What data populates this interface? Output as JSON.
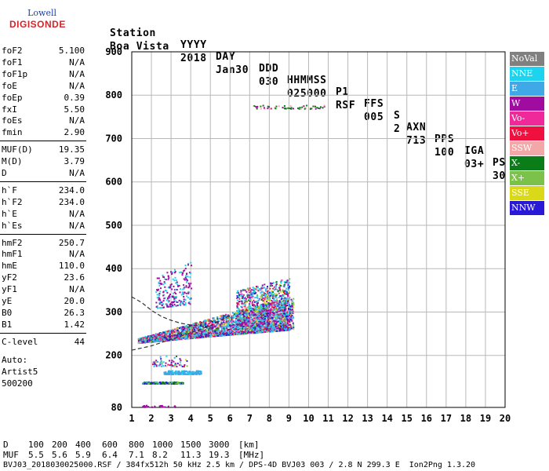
{
  "logo": {
    "line1": "Lowell",
    "line2": "DIGISONDE"
  },
  "header": {
    "labels": [
      "Station",
      "YYYY",
      "DAY",
      "DDD",
      "HHMMSS",
      "P1",
      "FFS",
      "S",
      "AXN",
      "PPS",
      "IGA",
      "PS"
    ],
    "values": [
      "Boa Vista",
      "2018",
      "Jan30",
      "030",
      "025000",
      "RSF",
      "005",
      "2",
      "713",
      "100",
      "03+",
      "30"
    ]
  },
  "parameters": {
    "group1": [
      {
        "name": "foF2",
        "value": "5.100"
      },
      {
        "name": "foF1",
        "value": "N/A"
      },
      {
        "name": "foF1p",
        "value": "N/A"
      },
      {
        "name": "foE",
        "value": "N/A"
      },
      {
        "name": "foEp",
        "value": "0.39"
      },
      {
        "name": "fxI",
        "value": "5.50"
      },
      {
        "name": "foEs",
        "value": "N/A"
      },
      {
        "name": "fmin",
        "value": "2.90"
      }
    ],
    "group2": [
      {
        "name": "MUF(D)",
        "value": "19.35"
      },
      {
        "name": "M(D)",
        "value": "3.79"
      },
      {
        "name": "D",
        "value": "N/A"
      }
    ],
    "group3": [
      {
        "name": "h`F",
        "value": "234.0"
      },
      {
        "name": "h`F2",
        "value": "234.0"
      },
      {
        "name": "h`E",
        "value": "N/A"
      },
      {
        "name": "h`Es",
        "value": "N/A"
      }
    ],
    "group4": [
      {
        "name": "hmF2",
        "value": "250.7"
      },
      {
        "name": "hmF1",
        "value": "N/A"
      },
      {
        "name": "hmE",
        "value": "110.0"
      },
      {
        "name": "yF2",
        "value": "23.6"
      },
      {
        "name": "yF1",
        "value": "N/A"
      },
      {
        "name": "yE",
        "value": "20.0"
      },
      {
        "name": "B0",
        "value": "26.3"
      },
      {
        "name": "B1",
        "value": "1.42"
      }
    ],
    "group5": [
      {
        "name": "C-level",
        "value": "44"
      }
    ],
    "auto": [
      "Auto:",
      "Artist5",
      "500200"
    ]
  },
  "legend": [
    {
      "label": "NoVal",
      "color": "#808080"
    },
    {
      "label": "NNE",
      "color": "#1ed3ee"
    },
    {
      "label": "E",
      "color": "#3fa8e6"
    },
    {
      "label": "W",
      "color": "#a00ca0"
    },
    {
      "label": "Vo-",
      "color": "#f0299b"
    },
    {
      "label": "Vo+",
      "color": "#ef1040"
    },
    {
      "label": "SSW",
      "color": "#f2a8a8"
    },
    {
      "label": "X-",
      "color": "#0a7c18"
    },
    {
      "label": "X+",
      "color": "#7cc24a"
    },
    {
      "label": "SSE",
      "color": "#d9d91a"
    },
    {
      "label": "NNW",
      "color": "#2a18d8"
    }
  ],
  "chart_data": {
    "type": "scatter",
    "xlim": [
      1,
      20
    ],
    "ylim": [
      80,
      900
    ],
    "xticks": [
      1,
      2,
      3,
      4,
      5,
      6,
      7,
      8,
      9,
      10,
      11,
      12,
      13,
      14,
      15,
      16,
      17,
      18,
      19,
      20
    ],
    "yticks": [
      80,
      200,
      300,
      400,
      500,
      600,
      700,
      800,
      900
    ],
    "grid": true,
    "clusters": [
      {
        "x0": 1.3,
        "x1": 9.2,
        "ylow0": 230,
        "ylow1": 262,
        "yhigh0": 240,
        "yhigh1": 340,
        "n": 3200
      },
      {
        "x0": 6.3,
        "x1": 9.0,
        "ylow0": 250,
        "ylow1": 260,
        "yhigh0": 350,
        "yhigh1": 380,
        "n": 1400
      },
      {
        "x0": 2.2,
        "x1": 4.0,
        "ylow0": 310,
        "ylow1": 320,
        "yhigh0": 380,
        "yhigh1": 420,
        "n": 250
      },
      {
        "x0": 2.6,
        "x1": 4.5,
        "ylow0": 158,
        "ylow1": 158,
        "yhigh0": 166,
        "yhigh1": 166,
        "n": 220
      },
      {
        "x0": 2.0,
        "x1": 3.8,
        "ylow0": 176,
        "ylow1": 176,
        "yhigh0": 200,
        "yhigh1": 200,
        "n": 60
      },
      {
        "x0": 1.5,
        "x1": 3.6,
        "ylow0": 136,
        "ylow1": 136,
        "yhigh0": 140,
        "yhigh1": 140,
        "n": 200
      },
      {
        "x0": 1.5,
        "x1": 3.2,
        "ylow0": 82,
        "ylow1": 82,
        "yhigh0": 86,
        "yhigh1": 86,
        "n": 25
      },
      {
        "x0": 7.0,
        "x1": 10.8,
        "ylow0": 770,
        "ylow1": 770,
        "yhigh0": 778,
        "yhigh1": 778,
        "n": 60
      }
    ],
    "profile_curve": {
      "x": [
        1.0,
        1.5,
        2.0,
        2.5,
        3.0,
        3.5,
        4.0,
        5.0
      ],
      "y": [
        335,
        322,
        304,
        290,
        281,
        274,
        270,
        266
      ]
    },
    "trace_curve": {
      "x": [
        1.0,
        2.0,
        3.0,
        4.0,
        5.0,
        6.0
      ],
      "y": [
        212,
        222,
        237,
        252,
        268,
        292
      ]
    }
  },
  "footer": {
    "d_label": "D",
    "d_values": [
      "100",
      "200",
      "400",
      "600",
      "800",
      "1000",
      "1500",
      "3000"
    ],
    "d_unit": "[km]",
    "muf_label": "MUF",
    "muf_values": [
      "5.5",
      "5.6",
      "5.9",
      "6.4",
      "7.1",
      "8.2",
      "11.3",
      "19.3"
    ],
    "muf_unit": "[MHz]",
    "info": "BVJ03_2018030025000.RSF / 384fx512h 50 kHz 2.5 km / DPS-4D BVJ03 003 / 2.8 N 299.3 E  Ion2Png 1.3.20"
  }
}
